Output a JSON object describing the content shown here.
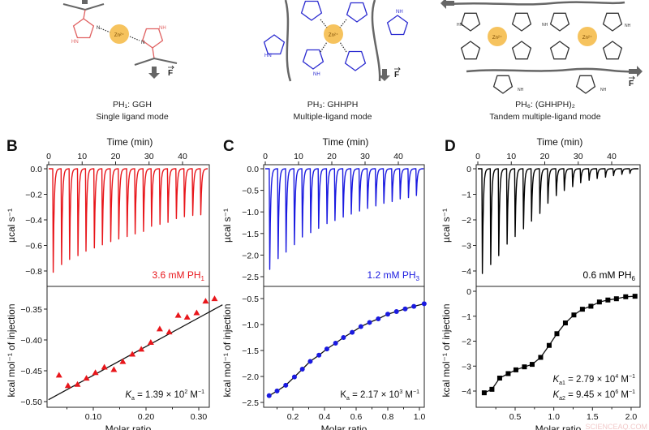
{
  "schematic": {
    "zn_label": "Zn²⁺",
    "force_label": "F",
    "n_label": "N",
    "nh_label": "NH",
    "hn_label": "HN",
    "panels": [
      {
        "name_main": "PH₁: GGH",
        "mode": "Single ligand mode",
        "color": "#e06060"
      },
      {
        "name_main": "PH₃: GHHPH",
        "mode": "Multiple-ligand mode",
        "color": "#2a2ad0"
      },
      {
        "name_main": "PH₆: (GHHPH)₂",
        "mode": "Tandem multiple-ligand mode",
        "color": "#333333"
      }
    ]
  },
  "watermark": "SCIENCEAQ.COM",
  "chart_data": [
    {
      "panel": "B",
      "type": "line",
      "color": "#e8161b",
      "top": {
        "xlabel": "Time (min)",
        "ylabel": "µcal s⁻¹",
        "xlim": [
          0,
          48
        ],
        "ylim": [
          -0.9,
          0.02
        ],
        "xticks": [
          0,
          10,
          20,
          30,
          40
        ],
        "xtick_labels": [
          "0",
          "10",
          "20",
          "30",
          "40"
        ],
        "yticks": [
          0,
          -0.2,
          -0.4,
          -0.6,
          -0.8
        ],
        "ytick_labels": [
          "0.0",
          "−0.2",
          "−0.4",
          "−0.6",
          "−0.8"
        ],
        "injection_times": [
          1.2,
          3.7,
          6.1,
          8.6,
          11.0,
          13.5,
          15.9,
          18.4,
          20.8,
          23.3,
          25.7,
          28.2,
          30.6,
          33.1,
          35.5,
          38.0,
          40.4,
          42.9,
          45.3
        ],
        "peak_values": [
          -0.81,
          -0.75,
          -0.71,
          -0.68,
          -0.645,
          -0.62,
          -0.595,
          -0.57,
          -0.55,
          -0.53,
          -0.51,
          -0.49,
          -0.45,
          -0.435,
          -0.42,
          -0.39,
          -0.375,
          -0.365,
          -0.36
        ],
        "annotation": "3.6 mM PH",
        "annotation_sub": "1"
      },
      "bottom": {
        "xlabel": "Molar ratio",
        "ylabel": "kcal mol⁻¹ of injection",
        "marker": "triangle",
        "xticks": [
          0.1,
          0.2,
          0.3
        ],
        "xtick_labels": [
          "0.10",
          "0.20",
          "0.30"
        ],
        "yticks": [
          -0.35,
          -0.4,
          -0.45,
          -0.5
        ],
        "ytick_labels": [
          "−0.35",
          "−0.40",
          "−0.45",
          "−0.50"
        ],
        "x": [
          0.035,
          0.052,
          0.07,
          0.087,
          0.104,
          0.121,
          0.139,
          0.156,
          0.174,
          0.191,
          0.209,
          0.226,
          0.244,
          0.261,
          0.278,
          0.296,
          0.313,
          0.33
        ],
        "y": [
          -0.457,
          -0.474,
          -0.472,
          -0.462,
          -0.453,
          -0.444,
          -0.448,
          -0.435,
          -0.423,
          -0.415,
          -0.404,
          -0.382,
          -0.387,
          -0.36,
          -0.363,
          -0.356,
          -0.337,
          -0.333
        ],
        "fit_x": [
          0.015,
          0.345
        ],
        "fit_y": [
          -0.497,
          -0.343
        ],
        "ka": [
          {
            "K": "K",
            "sub": "a",
            "eq": " = 1.39 × 10",
            "exp": "2",
            "unit": " M",
            "unit_exp": "−1"
          }
        ]
      }
    },
    {
      "panel": "C",
      "type": "line",
      "color": "#1a1ae0",
      "top": {
        "xlabel": "Time (min)",
        "ylabel": "µcal s⁻¹",
        "xlim": [
          0,
          48
        ],
        "ylim": [
          -2.75,
          0.05
        ],
        "xticks": [
          0,
          10,
          20,
          30,
          40
        ],
        "xtick_labels": [
          "0",
          "10",
          "20",
          "30",
          "40"
        ],
        "yticks": [
          0,
          -0.5,
          -1.0,
          -1.5,
          -2.0,
          -2.5
        ],
        "ytick_labels": [
          "0.0",
          "−0.5",
          "−1.0",
          "−1.5",
          "−2.0",
          "−2.5"
        ],
        "injection_times": [
          1.2,
          3.7,
          6.1,
          8.6,
          11.0,
          13.5,
          15.9,
          18.4,
          20.8,
          23.3,
          25.7,
          28.2,
          30.6,
          33.1,
          35.5,
          38.0,
          40.4,
          42.9,
          45.3
        ],
        "peak_values": [
          -2.33,
          -2.08,
          -1.93,
          -1.76,
          -1.58,
          -1.48,
          -1.38,
          -1.27,
          -1.2,
          -1.12,
          -1.05,
          -0.98,
          -0.92,
          -0.86,
          -0.8,
          -0.76,
          -0.7,
          -0.67,
          -0.62
        ],
        "annotation": "1.2 mM PH",
        "annotation_sub": "3"
      },
      "bottom": {
        "xlabel": "Molar ratio",
        "ylabel": "kcal mol⁻¹ of injection",
        "marker": "circle",
        "xticks": [
          0.2,
          0.4,
          0.6,
          0.8,
          1.0
        ],
        "xtick_labels": [
          "0.2",
          "0.4",
          "0.6",
          "0.8",
          "1.0"
        ],
        "yticks": [
          -0.5,
          -1.0,
          -1.5,
          -2.0,
          -2.5
        ],
        "ytick_labels": [
          "−0.5",
          "−1.0",
          "−1.5",
          "−2.0",
          "−2.5"
        ],
        "x": [
          0.05,
          0.1,
          0.155,
          0.21,
          0.26,
          0.31,
          0.365,
          0.415,
          0.47,
          0.52,
          0.575,
          0.63,
          0.685,
          0.74,
          0.8,
          0.855,
          0.91,
          0.965,
          1.03
        ],
        "y": [
          -2.37,
          -2.28,
          -2.17,
          -2.01,
          -1.86,
          -1.71,
          -1.59,
          -1.47,
          -1.36,
          -1.25,
          -1.15,
          -1.04,
          -0.96,
          -0.89,
          -0.8,
          -0.75,
          -0.7,
          -0.65,
          -0.6
        ],
        "ka": [
          {
            "K": "K",
            "sub": "a",
            "eq": " = 2.17 × 10",
            "exp": "3",
            "unit": " M",
            "unit_exp": "−1"
          }
        ]
      }
    },
    {
      "panel": "D",
      "type": "line",
      "color": "#000000",
      "top": {
        "xlabel": "Time (min)",
        "ylabel": "µcal s⁻¹",
        "xlim": [
          0,
          48
        ],
        "ylim": [
          -4.5,
          0.1
        ],
        "xticks": [
          0,
          10,
          20,
          30,
          40
        ],
        "xtick_labels": [
          "0",
          "10",
          "20",
          "30",
          "40"
        ],
        "yticks": [
          0,
          -1,
          -2,
          -3,
          -4
        ],
        "ytick_labels": [
          "0",
          "−1",
          "−2",
          "−3",
          "−4"
        ],
        "injection_times": [
          1.2,
          3.7,
          6.1,
          8.6,
          11.0,
          13.5,
          15.9,
          18.4,
          20.8,
          23.3,
          25.7,
          28.2,
          30.6,
          33.1,
          35.5,
          38.0,
          40.4,
          42.9,
          45.3
        ],
        "peak_values": [
          -4.1,
          -3.75,
          -3.4,
          -2.95,
          -2.65,
          -2.35,
          -2.05,
          -1.75,
          -1.35,
          -1.05,
          -0.85,
          -0.7,
          -0.55,
          -0.45,
          -0.38,
          -0.33,
          -0.27,
          -0.22,
          -0.18
        ],
        "annotation": "0.6 mM PH",
        "annotation_sub": "6"
      },
      "bottom": {
        "xlabel": "Molar ratio",
        "ylabel": "kcal mol⁻¹ of injection",
        "marker": "square",
        "xticks": [
          0.5,
          1.0,
          1.5,
          2.0
        ],
        "xtick_labels": [
          "0.5",
          "1.0",
          "1.5",
          "2.0"
        ],
        "yticks": [
          0,
          -1,
          -2,
          -3,
          -4
        ],
        "ytick_labels": [
          "0",
          "−1",
          "−2",
          "−3",
          "−4"
        ],
        "x": [
          0.1,
          0.2,
          0.3,
          0.41,
          0.51,
          0.62,
          0.72,
          0.83,
          0.94,
          1.04,
          1.15,
          1.26,
          1.37,
          1.48,
          1.59,
          1.7,
          1.81,
          1.93,
          2.05
        ],
        "y": [
          -4.07,
          -3.93,
          -3.48,
          -3.3,
          -3.15,
          -3.03,
          -2.93,
          -2.65,
          -2.17,
          -1.7,
          -1.27,
          -0.95,
          -0.72,
          -0.6,
          -0.43,
          -0.35,
          -0.3,
          -0.22,
          -0.2
        ],
        "ka": [
          {
            "K": "K",
            "sub": "a1",
            "eq": " = 2.79 × 10",
            "exp": "4",
            "unit": " M",
            "unit_exp": "−1"
          },
          {
            "K": "K",
            "sub": "a2",
            "eq": " = 9.45 × 10",
            "exp": "6",
            "unit": " M",
            "unit_exp": "−1"
          }
        ]
      }
    }
  ]
}
